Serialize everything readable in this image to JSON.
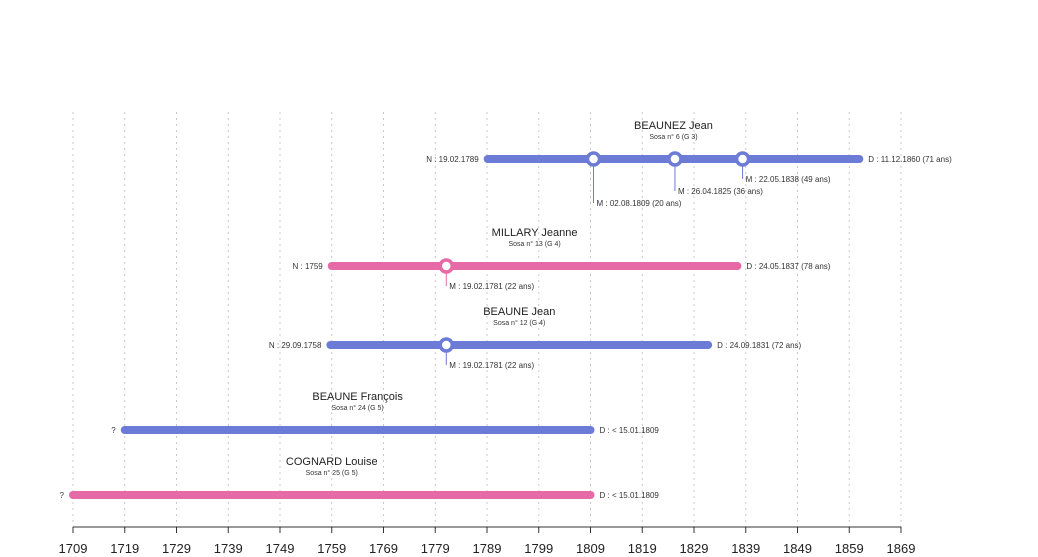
{
  "chart_data": {
    "type": "timeline",
    "x_axis": {
      "ticks": [
        1709,
        1719,
        1729,
        1739,
        1749,
        1759,
        1769,
        1779,
        1789,
        1799,
        1809,
        1819,
        1829,
        1839,
        1849,
        1859,
        1869
      ],
      "range": [
        1709,
        1869
      ],
      "grid": true
    },
    "colors": {
      "male": "#6b7bd6",
      "female": "#e56aa5"
    },
    "people": [
      {
        "name": "BEAUNEZ Jean",
        "sosa": "Sosa n° 6 (G 3)",
        "gender": "male",
        "start": 1789.13,
        "end": 1860.94,
        "start_label": "N : 19.02.1789",
        "end_label": "D : 11.12.1860 (71 ans)",
        "events": [
          {
            "x": 1809.58,
            "label": "M : 02.08.1809 (20 ans)",
            "level": 3
          },
          {
            "x": 1825.32,
            "label": "M : 26.04.1825 (36 ans)",
            "level": 2
          },
          {
            "x": 1838.39,
            "label": "M : 22.05.1838 (49 ans)",
            "level": 1
          }
        ]
      },
      {
        "name": "MILLARY Jeanne",
        "sosa": "Sosa n° 13 (G 4)",
        "gender": "female",
        "start": 1759.0,
        "end": 1837.39,
        "start_label": "N : 1759",
        "end_label": "D : 24.05.1837 (78 ans)",
        "events": [
          {
            "x": 1781.13,
            "label": "M : 19.02.1781 (22 ans)",
            "level": 1
          }
        ]
      },
      {
        "name": "BEAUNE Jean",
        "sosa": "Sosa n° 12 (G 4)",
        "gender": "male",
        "start": 1758.74,
        "end": 1831.73,
        "start_label": "N : 29.09.1758",
        "end_label": "D : 24.09.1831 (72 ans)",
        "events": [
          {
            "x": 1781.13,
            "label": "M : 19.02.1781 (22 ans)",
            "level": 1
          }
        ]
      },
      {
        "name": "BEAUNE François",
        "sosa": "Sosa n° 24 (G 5)",
        "gender": "male",
        "start": 1719.0,
        "end": 1809.0,
        "start_label": "?",
        "end_label": "D : < 15.01.1809",
        "events": []
      },
      {
        "name": "COGNARD Louise",
        "sosa": "Sosa n° 25 (G 5)",
        "gender": "female",
        "start": 1709.0,
        "end": 1809.0,
        "start_label": "?",
        "end_label": "D : < 15.01.1809",
        "events": []
      }
    ]
  }
}
